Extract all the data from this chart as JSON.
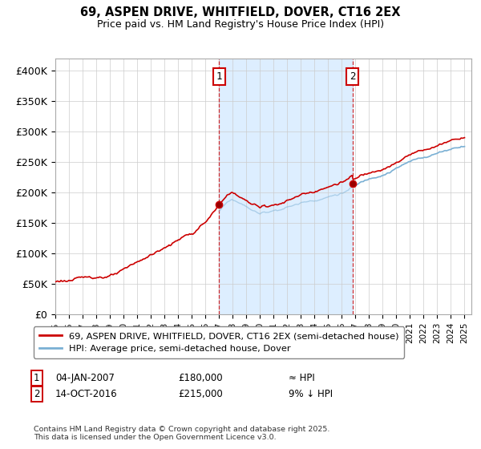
{
  "title": "69, ASPEN DRIVE, WHITFIELD, DOVER, CT16 2EX",
  "subtitle": "Price paid vs. HM Land Registry's House Price Index (HPI)",
  "property_label": "69, ASPEN DRIVE, WHITFIELD, DOVER, CT16 2EX (semi-detached house)",
  "hpi_label": "HPI: Average price, semi-detached house, Dover",
  "property_color": "#cc0000",
  "hpi_color": "#7ab0d4",
  "shade_color": "#ddeeff",
  "annotation1_date_num": 2007.0,
  "annotation1_price": 180000,
  "annotation1_text": "04-JAN-2007",
  "annotation1_value_text": "£180,000",
  "annotation1_hpi_text": "≈ HPI",
  "annotation2_date_num": 2016.79,
  "annotation2_price": 215000,
  "annotation2_text": "14-OCT-2016",
  "annotation2_value_text": "£215,000",
  "annotation2_hpi_text": "9% ↓ HPI",
  "footer": "Contains HM Land Registry data © Crown copyright and database right 2025.\nThis data is licensed under the Open Government Licence v3.0.",
  "ylim": [
    0,
    420000
  ],
  "yticks": [
    0,
    50000,
    100000,
    150000,
    200000,
    250000,
    300000,
    350000,
    400000
  ],
  "ytick_labels": [
    "£0",
    "£50K",
    "£100K",
    "£150K",
    "£200K",
    "£250K",
    "£300K",
    "£350K",
    "£400K"
  ],
  "xlim_start": 1995.0,
  "xlim_end": 2025.5
}
